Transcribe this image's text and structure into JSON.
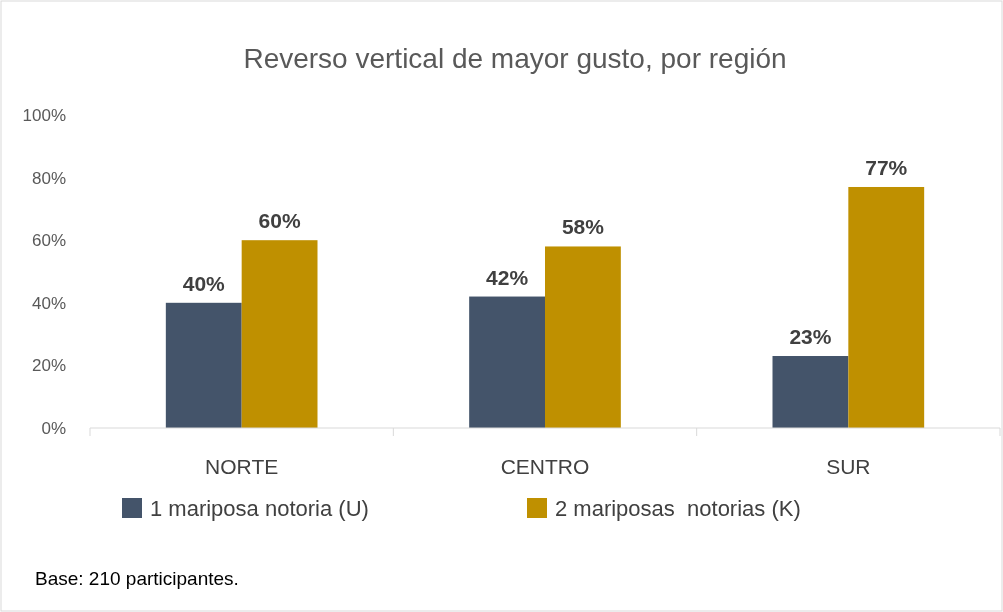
{
  "chart_data": {
    "type": "bar",
    "title": "Reverso vertical de mayor gusto, por región",
    "categories": [
      "NORTE",
      "CENTRO",
      "SUR"
    ],
    "series": [
      {
        "name": "1 mariposa notoria (U)",
        "color": "#44546a",
        "values": [
          40,
          42,
          23
        ],
        "value_labels": [
          "40%",
          "42%",
          "23%"
        ]
      },
      {
        "name": "2 mariposas  notorias (K)",
        "color": "#bf9000",
        "values": [
          60,
          58,
          77
        ],
        "value_labels": [
          "60%",
          "58%",
          "77%"
        ]
      }
    ],
    "ylim": [
      0,
      100
    ],
    "yticks": [
      {
        "value": 0,
        "label": "0%"
      },
      {
        "value": 20,
        "label": "20%"
      },
      {
        "value": 40,
        "label": "40%"
      },
      {
        "value": 60,
        "label": "60%"
      },
      {
        "value": 80,
        "label": "80%"
      },
      {
        "value": 100,
        "label": "100%"
      }
    ],
    "grid": false,
    "legend": "bottom",
    "annotations": [
      "Base: 210 participantes."
    ]
  }
}
